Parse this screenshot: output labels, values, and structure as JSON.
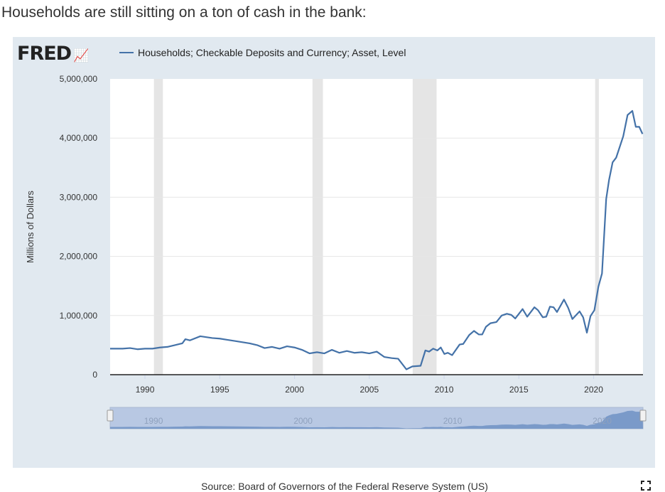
{
  "headline": "Households are still sitting on a ton of cash in the bank:",
  "logo": "FRED",
  "source": "Source: Board of Governors of the Federal Reserve System (US)",
  "colors": {
    "line": "#4472a8",
    "recession": "#e5e5e5",
    "background": "#e1e9f0"
  },
  "chart_data": {
    "type": "line",
    "title": "Households; Checkable Deposits and Currency; Asset, Level",
    "ylabel": "Millions of Dollars",
    "xlabel": "",
    "xlim": [
      1987.67,
      2023.3
    ],
    "ylim": [
      0,
      5000000
    ],
    "yticks": [
      0,
      1000000,
      2000000,
      3000000,
      4000000,
      5000000
    ],
    "ytick_labels": [
      "0",
      "1,000,000",
      "2,000,000",
      "3,000,000",
      "4,000,000",
      "5,000,000"
    ],
    "xticks": [
      1990,
      1995,
      2000,
      2005,
      2010,
      2015,
      2020
    ],
    "xtick_labels": [
      "1990",
      "1995",
      "2000",
      "2005",
      "2010",
      "2015",
      "2020"
    ],
    "navigator_labels": [
      "1990",
      "2000",
      "2010",
      "2020"
    ],
    "grid": true,
    "legend": "top-left",
    "recessions": [
      [
        1990.6,
        1991.2
      ],
      [
        2001.2,
        2001.9
      ],
      [
        2007.9,
        2009.5
      ],
      [
        2020.1,
        2020.35
      ]
    ],
    "series": [
      {
        "name": "Households; Checkable Deposits and Currency; Asset, Level",
        "x": [
          1987.67,
          1988.5,
          1989,
          1989.5,
          1990,
          1990.5,
          1991,
          1991.5,
          1992,
          1992.5,
          1992.7,
          1993,
          1993.7,
          1994.5,
          1995,
          1995.5,
          1996,
          1997,
          1997.5,
          1998,
          1998.5,
          1999,
          1999.5,
          2000,
          2000.5,
          2001,
          2001.5,
          2002,
          2002.5,
          2003,
          2003.5,
          2004,
          2004.5,
          2005,
          2005.5,
          2006,
          2006.5,
          2006.93,
          2007.48,
          2007.88,
          2008.43,
          2008.75,
          2009.0,
          2009.27,
          2009.55,
          2009.78,
          2010.02,
          2010.25,
          2010.54,
          2011.04,
          2011.28,
          2011.68,
          2012.0,
          2012.32,
          2012.55,
          2012.8,
          2013.1,
          2013.5,
          2013.85,
          2014.2,
          2014.5,
          2014.76,
          2015.25,
          2015.56,
          2016.04,
          2016.28,
          2016.6,
          2016.83,
          2017.08,
          2017.32,
          2017.55,
          2018.02,
          2018.3,
          2018.58,
          2019.06,
          2019.3,
          2019.55,
          2019.79,
          2020.05,
          2020.32,
          2020.56,
          2020.84,
          2021.03,
          2021.27,
          2021.51,
          2021.98,
          2022.27,
          2022.59,
          2022.82,
          2023.05,
          2023.27
        ],
        "y": [
          440000,
          440000,
          450000,
          430000,
          440000,
          440000,
          460000,
          470000,
          500000,
          530000,
          600000,
          580000,
          650000,
          620000,
          610000,
          590000,
          570000,
          530000,
          500000,
          450000,
          470000,
          440000,
          480000,
          460000,
          420000,
          360000,
          380000,
          360000,
          420000,
          370000,
          400000,
          370000,
          380000,
          360000,
          390000,
          300000,
          280000,
          270000,
          90000,
          140000,
          150000,
          410000,
          390000,
          440000,
          410000,
          460000,
          350000,
          370000,
          330000,
          510000,
          520000,
          670000,
          740000,
          680000,
          680000,
          810000,
          870000,
          890000,
          1000000,
          1030000,
          1010000,
          950000,
          1110000,
          980000,
          1140000,
          1090000,
          970000,
          980000,
          1150000,
          1140000,
          1060000,
          1270000,
          1130000,
          940000,
          1070000,
          970000,
          710000,
          990000,
          1090000,
          1490000,
          1710000,
          2970000,
          3290000,
          3590000,
          3670000,
          4030000,
          4390000,
          4460000,
          4190000,
          4190000,
          4070000
        ]
      }
    ]
  }
}
